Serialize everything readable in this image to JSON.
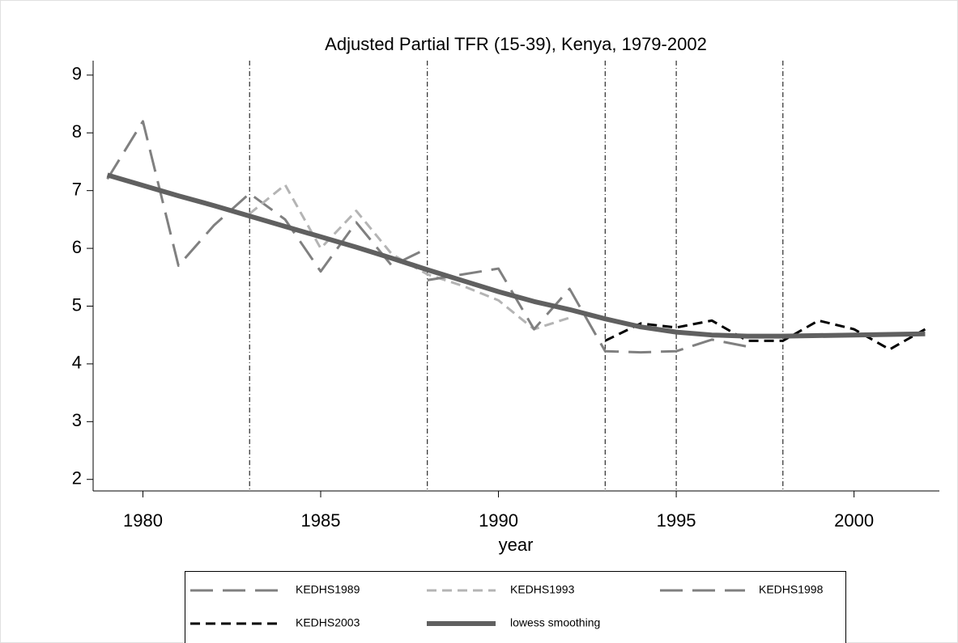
{
  "chart_data": {
    "type": "line",
    "title": "Adjusted Partial TFR (15-39), Kenya, 1979-2002",
    "x_label": "year",
    "x": [
      1979,
      1980,
      1981,
      1982,
      1983,
      1984,
      1985,
      1986,
      1987,
      1988,
      1989,
      1990,
      1991,
      1992,
      1993,
      1994,
      1995,
      1996,
      1997,
      1998,
      1999,
      2000,
      2001,
      2002
    ],
    "series": [
      {
        "name": "KEDHS1989",
        "color": "#808080",
        "line_style": "longdash",
        "values": [
          7.2,
          8.2,
          5.7,
          6.4,
          6.95,
          6.5,
          5.6,
          6.45,
          5.7,
          6.0,
          null,
          null,
          null,
          null,
          null,
          null,
          null,
          null,
          null,
          null,
          null,
          null,
          null,
          null
        ]
      },
      {
        "name": "KEDHS1993",
        "color": "#b4b4b4",
        "line_style": "dash",
        "values": [
          null,
          null,
          null,
          null,
          6.6,
          7.1,
          6.0,
          6.65,
          5.9,
          5.55,
          5.35,
          5.1,
          4.6,
          4.8,
          null,
          null,
          null,
          null,
          null,
          null,
          null,
          null,
          null,
          null
        ]
      },
      {
        "name": "KEDHS1998",
        "color": "#808080",
        "line_style": "longdash",
        "values": [
          null,
          null,
          null,
          null,
          null,
          null,
          null,
          null,
          null,
          5.45,
          5.55,
          5.65,
          4.6,
          5.3,
          4.22,
          4.2,
          4.22,
          4.42,
          4.3,
          null,
          null,
          null,
          null,
          null
        ]
      },
      {
        "name": "KEDHS2003",
        "color": "#000000",
        "line_style": "dash",
        "values": [
          null,
          null,
          null,
          null,
          null,
          null,
          null,
          null,
          null,
          null,
          null,
          null,
          null,
          null,
          4.4,
          4.7,
          4.63,
          4.75,
          4.4,
          4.4,
          4.75,
          4.6,
          4.25,
          4.6
        ]
      },
      {
        "name": "lowess smoothing",
        "color": "#606060",
        "line_style": "thick",
        "values": [
          7.27,
          7.09,
          6.91,
          6.74,
          6.56,
          6.38,
          6.2,
          6.02,
          5.83,
          5.63,
          5.44,
          5.25,
          5.08,
          4.94,
          4.78,
          4.64,
          4.55,
          4.5,
          4.48,
          4.48,
          4.49,
          4.5,
          4.51,
          4.52
        ]
      }
    ],
    "xlim": [
      1978.6,
      2002.4
    ],
    "ylim": [
      1.8,
      9.25
    ],
    "xticks": [
      1980,
      1985,
      1990,
      1995,
      2000
    ],
    "yticks": [
      2,
      3,
      4,
      5,
      6,
      7,
      8,
      9
    ],
    "xlines": [
      1983,
      1988,
      1993,
      1995,
      1998
    ]
  }
}
